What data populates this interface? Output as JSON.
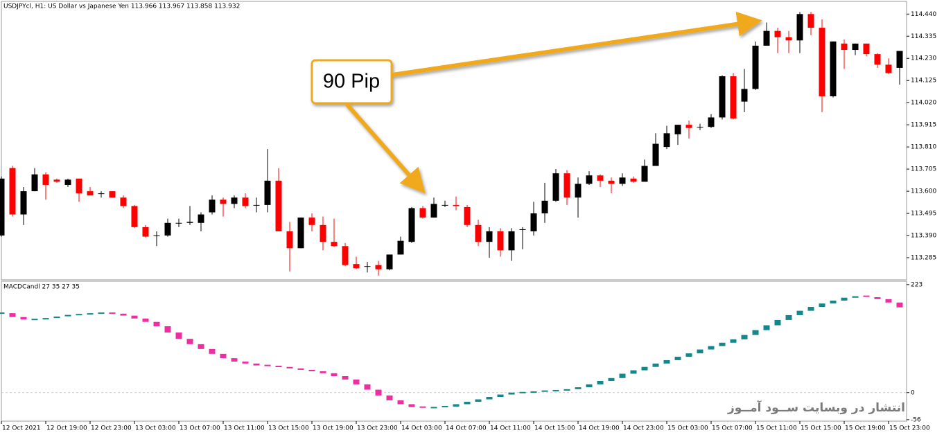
{
  "chart_data": [
    {
      "type": "candlestick",
      "title": "USDJPYcl, H1:  US Dollar vs Japanese Yen  113.966 113.967 113.858 113.932",
      "annotation": "90 Pip",
      "categories": [
        "12 Oct 2021",
        null,
        null,
        null,
        "12 Oct 19:00",
        null,
        null,
        null,
        "12 Oct 23:00",
        null,
        null,
        null,
        "13 Oct 03:00",
        null,
        null,
        null,
        "13 Oct 07:00",
        null,
        null,
        null,
        "13 Oct 11:00",
        null,
        null,
        null,
        "13 Oct 15:00",
        null,
        null,
        null,
        "13 Oct 19:00",
        null,
        null,
        null,
        "13 Oct 23:00",
        null,
        null,
        null,
        "14 Oct 03:00",
        null,
        null,
        null,
        "14 Oct 07:00",
        null,
        null,
        null,
        "14 Oct 11:00",
        null,
        null,
        null,
        "14 Oct 15:00",
        null,
        null,
        null,
        "14 Oct 19:00",
        null,
        null,
        null,
        "14 Oct 23:00",
        null,
        null,
        null,
        "15 Oct 03:00",
        null,
        null,
        null,
        "15 Oct 07:00",
        null,
        null,
        null,
        "15 Oct 11:00",
        null,
        null,
        null,
        "15 Oct 15:00",
        null,
        null,
        null,
        "15 Oct 19:00",
        null,
        null,
        null,
        "15 Oct 23:00",
        null
      ],
      "open": [
        113.39,
        113.71,
        113.49,
        113.6,
        113.68,
        113.655,
        113.63,
        113.66,
        113.6,
        113.59,
        113.6,
        113.57,
        113.53,
        113.43,
        113.39,
        113.39,
        113.45,
        113.45,
        113.45,
        113.5,
        113.56,
        113.54,
        113.57,
        113.535,
        113.535,
        113.65,
        113.41,
        113.33,
        113.475,
        113.44,
        113.36,
        113.34,
        113.255,
        113.245,
        113.25,
        113.23,
        113.3,
        113.36,
        113.52,
        113.475,
        113.535,
        113.535,
        113.525,
        113.44,
        113.36,
        113.41,
        113.32,
        113.42,
        113.41,
        113.495,
        113.555,
        113.685,
        113.57,
        113.635,
        113.675,
        113.65,
        113.635,
        113.66,
        113.645,
        113.72,
        113.81,
        113.87,
        113.915,
        113.905,
        113.905,
        113.95,
        114.145,
        114.025,
        114.085,
        114.29,
        114.36,
        114.33,
        114.315,
        114.44,
        114.375,
        114.05,
        114.3,
        114.27,
        114.3,
        114.25,
        114.2,
        114.185
      ],
      "high": [
        113.67,
        113.72,
        113.62,
        113.71,
        113.69,
        113.66,
        113.66,
        113.66,
        113.62,
        113.6,
        113.6,
        113.58,
        113.535,
        113.44,
        113.41,
        113.47,
        113.47,
        113.53,
        113.5,
        113.58,
        113.57,
        113.58,
        113.59,
        113.57,
        113.8,
        113.71,
        113.455,
        113.475,
        113.495,
        113.48,
        113.47,
        113.355,
        113.29,
        113.265,
        113.27,
        113.3,
        113.385,
        113.525,
        113.53,
        113.57,
        113.555,
        113.575,
        113.535,
        113.465,
        113.43,
        113.425,
        113.425,
        113.43,
        113.55,
        113.64,
        113.705,
        113.7,
        113.665,
        113.695,
        113.68,
        113.665,
        113.685,
        113.67,
        113.75,
        113.875,
        113.91,
        113.915,
        113.935,
        113.92,
        113.965,
        114.15,
        114.16,
        114.18,
        114.31,
        114.4,
        114.375,
        114.36,
        114.45,
        114.45,
        114.415,
        114.31,
        114.32,
        114.3,
        114.3,
        114.255,
        114.23,
        114.265
      ],
      "low": [
        113.385,
        113.48,
        113.44,
        113.6,
        113.56,
        113.64,
        113.62,
        113.55,
        113.58,
        113.57,
        113.57,
        113.52,
        113.425,
        113.38,
        113.34,
        113.385,
        113.43,
        113.44,
        113.41,
        113.49,
        113.48,
        113.52,
        113.52,
        113.5,
        113.5,
        113.41,
        113.22,
        113.33,
        113.41,
        113.32,
        113.335,
        113.245,
        113.23,
        113.215,
        113.2,
        113.225,
        113.3,
        113.355,
        113.47,
        113.475,
        113.525,
        113.51,
        113.43,
        113.34,
        113.285,
        113.29,
        113.27,
        113.325,
        113.39,
        113.45,
        113.55,
        113.535,
        113.475,
        113.63,
        113.62,
        113.59,
        113.625,
        113.64,
        113.645,
        113.72,
        113.8,
        113.82,
        113.85,
        113.89,
        113.9,
        113.94,
        113.94,
        113.975,
        114.08,
        114.29,
        114.255,
        114.255,
        114.255,
        114.34,
        113.975,
        114.045,
        114.18,
        114.245,
        114.24,
        114.185,
        114.155,
        114.105
      ],
      "close": [
        113.66,
        113.49,
        113.6,
        113.68,
        113.63,
        113.645,
        113.655,
        113.59,
        113.58,
        113.59,
        113.57,
        113.53,
        113.43,
        113.385,
        113.39,
        113.45,
        113.45,
        113.455,
        113.49,
        113.56,
        113.54,
        113.57,
        113.53,
        113.535,
        113.65,
        113.41,
        113.33,
        113.475,
        113.44,
        113.36,
        113.34,
        113.25,
        113.235,
        113.245,
        113.23,
        113.3,
        113.365,
        113.52,
        113.475,
        113.54,
        113.535,
        113.53,
        113.44,
        113.36,
        113.41,
        113.32,
        113.41,
        113.42,
        113.495,
        113.555,
        113.685,
        113.57,
        113.635,
        113.675,
        113.65,
        113.635,
        113.665,
        113.645,
        113.72,
        113.825,
        113.875,
        113.915,
        113.9,
        113.905,
        113.95,
        114.145,
        113.945,
        114.085,
        114.29,
        114.36,
        114.33,
        114.315,
        114.44,
        114.375,
        114.05,
        114.31,
        114.27,
        114.3,
        114.25,
        114.2,
        114.16,
        114.265
      ],
      "up_color": "#000000",
      "down_color": "#ff0000",
      "ylim": [
        113.18,
        114.5
      ],
      "yticks": [
        {
          "value": 114.44,
          "label": "114.440"
        },
        114.335,
        {
          "value": 114.23,
          "label": "114.230"
        },
        114.125,
        {
          "value": 114.02,
          "label": "114.020"
        },
        113.915,
        {
          "value": 113.81,
          "label": "113.810"
        },
        113.705,
        {
          "value": 113.6,
          "label": "113.600"
        },
        113.495,
        {
          "value": 113.39,
          "label": "113.390"
        },
        113.285
      ]
    },
    {
      "type": "macd_candle",
      "title": "MACDCandl 27 35 27 35",
      "values": [
        164,
        156,
        151,
        151,
        154,
        157,
        159,
        161,
        164,
        164,
        163,
        159,
        153,
        146,
        137,
        124,
        111,
        100,
        90,
        80,
        71,
        64,
        60,
        56,
        54,
        53,
        50,
        47,
        44,
        40,
        34,
        27,
        17,
        6,
        -6,
        -16,
        -24,
        -30,
        -31,
        -31,
        -29,
        -24,
        -19,
        -14,
        -9,
        -4,
        0,
        0,
        1,
        3,
        4,
        7,
        11,
        17,
        24,
        30,
        39,
        46,
        53,
        60,
        67,
        74,
        81,
        89,
        96,
        103,
        110,
        119,
        129,
        139,
        150,
        160,
        169,
        177,
        184,
        190,
        196,
        199,
        197,
        193,
        186,
        176
      ],
      "up_color": "#13878a",
      "down_color": "#ec2fa0",
      "ylim": [
        -59,
        230
      ],
      "yticks": [
        223,
        0,
        -56
      ],
      "zero_line": true
    }
  ],
  "watermark": "انتشار در وبسایت  ســود آمــوز"
}
